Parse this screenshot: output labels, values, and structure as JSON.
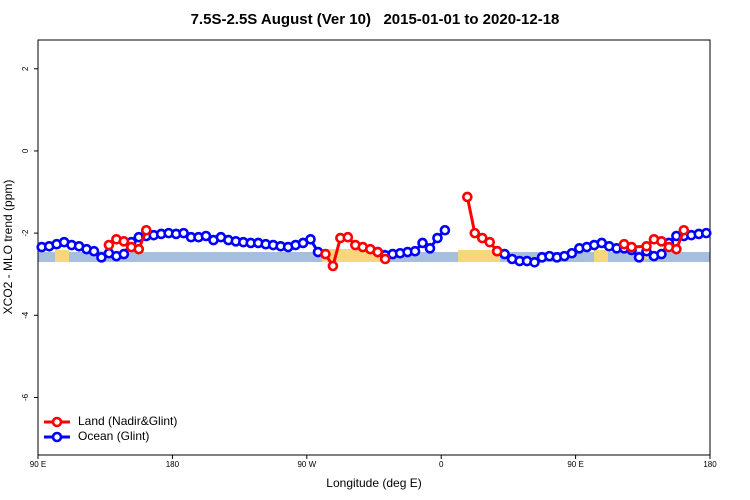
{
  "chart_data": {
    "type": "line",
    "title": "7.5S-2.5S August (Ver 10)   2015-01-01 to 2020-12-18",
    "xlabel": "Longitude (deg E)",
    "ylabel": "XCO2 - MLO trend (ppm)",
    "xlim": [
      90,
      540
    ],
    "xticks": [
      {
        "value": 90,
        "label": "90 E"
      },
      180,
      {
        "value": 270,
        "label": "90 W"
      },
      {
        "value": 360,
        "label": "0"
      },
      {
        "value": 450,
        "label": "90 E"
      },
      {
        "value": 540,
        "label": "180"
      }
    ],
    "ylim": [
      -7.4,
      2.7
    ],
    "yticks": [
      2,
      0,
      -2,
      -4,
      -6
    ],
    "legend": "bottom-left",
    "series": [
      {
        "name": "Land (Nadir&Glint)",
        "color": "#ff0000",
        "x": [
          137.5,
          142.5,
          147.5,
          152.5,
          157.5,
          162.5,
          167.5,
          282.5,
          287.5,
          292.5,
          297.5,
          302.5,
          307.5,
          312.5,
          317.5,
          322.5,
          327.5,
          377.5,
          382.5,
          387.5,
          392.5,
          397.5,
          402.5,
          482.5,
          487.5,
          497.5,
          502.5,
          507.5,
          512.5,
          517.5,
          522.5
        ],
        "values": [
          -2.29,
          -2.15,
          -2.2,
          -2.34,
          -2.39,
          -1.93,
          null,
          -2.51,
          -2.8,
          -2.12,
          -2.1,
          -2.29,
          -2.34,
          -2.39,
          -2.46,
          -2.63,
          null,
          -1.12,
          -2.0,
          -2.12,
          -2.22,
          -2.44,
          null,
          -2.27,
          -2.34,
          -2.32,
          -2.15,
          -2.2,
          -2.34,
          -2.39,
          -1.93
        ]
      },
      {
        "name": "Ocean (Glint)",
        "color": "#0000ff",
        "x": [
          92.5,
          97.5,
          102.5,
          107.5,
          112.5,
          117.5,
          122.5,
          127.5,
          132.5,
          137.5,
          142.5,
          147.5,
          152.5,
          157.5,
          162.5,
          167.5,
          172.5,
          177.5,
          182.5,
          187.5,
          192.5,
          197.5,
          202.5,
          207.5,
          212.5,
          217.5,
          222.5,
          227.5,
          232.5,
          237.5,
          242.5,
          247.5,
          252.5,
          257.5,
          262.5,
          267.5,
          272.5,
          277.5,
          282.5,
          317.5,
          322.5,
          327.5,
          332.5,
          337.5,
          342.5,
          347.5,
          352.5,
          357.5,
          362.5,
          367.5,
          397.5,
          402.5,
          407.5,
          412.5,
          417.5,
          422.5,
          427.5,
          432.5,
          437.5,
          442.5,
          447.5,
          452.5,
          457.5,
          462.5,
          467.5,
          472.5,
          477.5,
          482.5,
          487.5,
          492.5,
          497.5,
          502.5,
          507.5,
          512.5,
          517.5,
          522.5,
          527.5,
          532.5,
          537.5
        ],
        "values": [
          -2.34,
          -2.32,
          -2.27,
          -2.22,
          -2.29,
          -2.32,
          -2.39,
          -2.44,
          -2.59,
          -2.49,
          -2.56,
          -2.51,
          -2.22,
          -2.1,
          -2.07,
          -2.05,
          -2.02,
          -2.0,
          -2.02,
          -2.0,
          -2.1,
          -2.1,
          -2.07,
          -2.17,
          -2.1,
          -2.17,
          -2.2,
          -2.22,
          -2.24,
          -2.24,
          -2.27,
          -2.29,
          -2.32,
          -2.34,
          -2.29,
          -2.24,
          -2.15,
          -2.46,
          null,
          -2.46,
          -2.54,
          -2.51,
          -2.49,
          -2.46,
          -2.44,
          -2.24,
          -2.37,
          -2.12,
          -1.93,
          null,
          -2.44,
          -2.51,
          -2.63,
          -2.68,
          -2.68,
          -2.71,
          -2.59,
          -2.56,
          -2.59,
          -2.56,
          -2.49,
          -2.37,
          -2.34,
          -2.29,
          -2.24,
          -2.32,
          -2.37,
          -2.37,
          -2.41,
          -2.59,
          -2.44,
          -2.56,
          -2.51,
          -2.24,
          -2.07,
          -2.07,
          -2.05,
          -2.02,
          -2.0
        ]
      }
    ]
  }
}
